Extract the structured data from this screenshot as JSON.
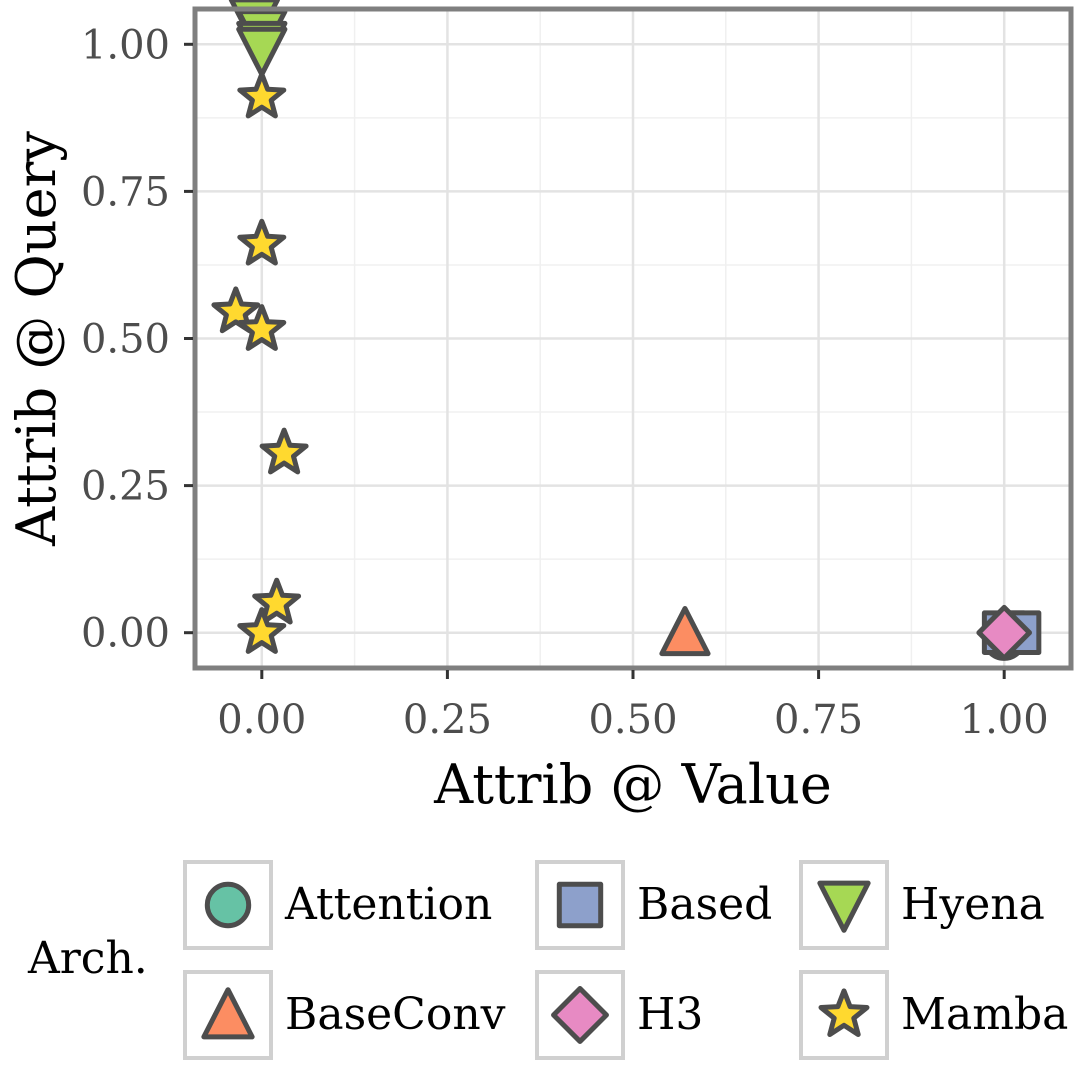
{
  "chart_data": {
    "type": "scatter",
    "xlabel": "Attrib @ Value",
    "ylabel": "Attrib @ Query",
    "xlim": [
      -0.09,
      1.09
    ],
    "ylim": [
      -0.06,
      1.06
    ],
    "xticks": [
      0.0,
      0.25,
      0.5,
      0.75,
      1.0
    ],
    "yticks": [
      0.0,
      0.25,
      0.5,
      0.75,
      1.0
    ],
    "xtick_labels": [
      "0.00",
      "0.25",
      "0.50",
      "0.75",
      "1.00"
    ],
    "ytick_labels": [
      "0.00",
      "0.25",
      "0.50",
      "0.75",
      "1.00"
    ],
    "grid": true,
    "legend": {
      "title": "Arch.",
      "placement": "bottom",
      "entries": [
        "Attention",
        "Based",
        "Hyena",
        "BaseConv",
        "H3",
        "Mamba"
      ]
    },
    "series": [
      {
        "name": "Attention",
        "shape": "circle",
        "color": "#66c2a5",
        "points": [
          [
            1.0,
            -0.01
          ],
          [
            1.0,
            0.0
          ]
        ]
      },
      {
        "name": "Based",
        "shape": "square",
        "color": "#8da0cb",
        "points": [
          [
            1.0,
            0.0
          ],
          [
            1.02,
            0.0
          ]
        ]
      },
      {
        "name": "Hyena",
        "shape": "triangle-down",
        "color": "#a6d854",
        "points": [
          [
            -0.01,
            1.04
          ],
          [
            0.0,
            1.02
          ],
          [
            0.0,
            1.0
          ],
          [
            0.0,
            0.99
          ]
        ]
      },
      {
        "name": "BaseConv",
        "shape": "triangle-up",
        "color": "#fc8d62",
        "points": [
          [
            0.57,
            0.0
          ]
        ]
      },
      {
        "name": "H3",
        "shape": "diamond",
        "color": "#e78ac3",
        "points": [
          [
            1.0,
            0.0
          ]
        ]
      },
      {
        "name": "Mamba",
        "shape": "star",
        "color": "#ffd92f",
        "points": [
          [
            0.0,
            0.91
          ],
          [
            0.0,
            0.66
          ],
          [
            -0.035,
            0.545
          ],
          [
            0.0,
            0.515
          ],
          [
            0.03,
            0.305
          ],
          [
            0.02,
            0.05
          ],
          [
            0.0,
            0.0
          ]
        ]
      }
    ]
  }
}
